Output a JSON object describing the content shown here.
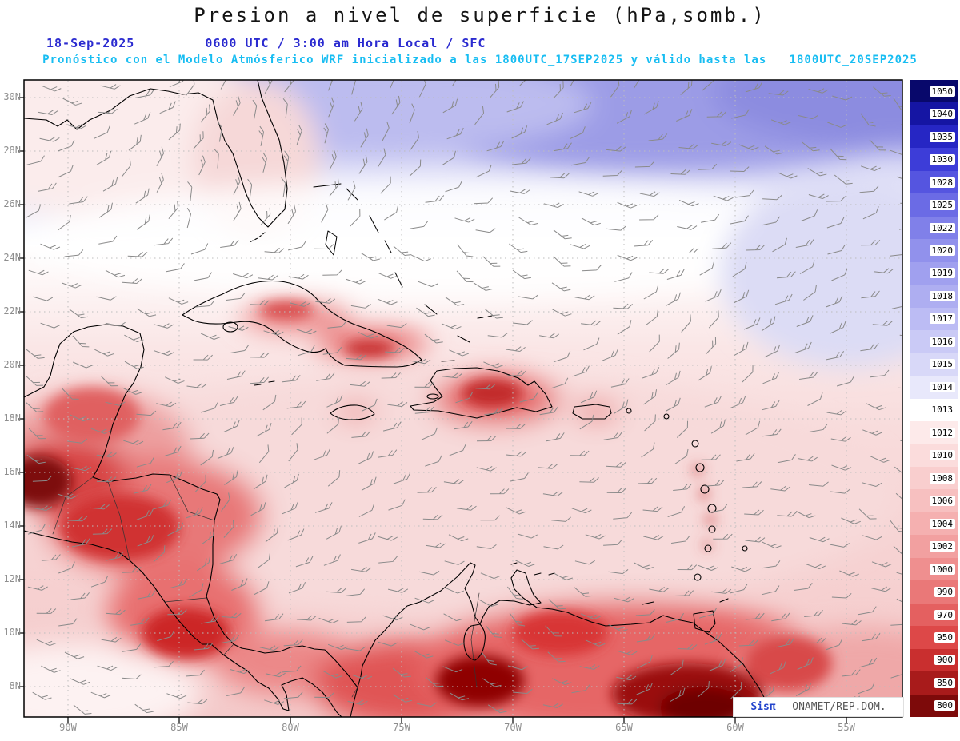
{
  "header": {
    "title": "Presion a nivel de superficie (hPa,somb.)",
    "date": "18-Sep-2025",
    "time_line": "0600 UTC / 3:00 am Hora Local / SFC",
    "forecast_line": "Pronóstico con el Modelo Atmósferico WRF inicializado a las 1800UTC_17SEP2025 y válido hasta las   1800UTC_20SEP2025"
  },
  "map": {
    "lat_labels": [
      "30N",
      "28N",
      "26N",
      "24N",
      "22N",
      "20N",
      "18N",
      "16N",
      "14N",
      "12N",
      "10N",
      "8N"
    ],
    "lon_labels": [
      "90W",
      "85W",
      "80W",
      "75W",
      "70W",
      "65W",
      "60W",
      "55W"
    ]
  },
  "colorbar": {
    "units": "hPa",
    "values": [
      "1050",
      "1040",
      "1035",
      "1030",
      "1028",
      "1025",
      "1022",
      "1020",
      "1019",
      "1018",
      "1017",
      "1016",
      "1015",
      "1014",
      "1013",
      "1012",
      "1010",
      "1008",
      "1006",
      "1004",
      "1002",
      "1000",
      "990",
      "970",
      "950",
      "900",
      "850",
      "800"
    ],
    "colors": [
      "#08086b",
      "#1515a3",
      "#2626c4",
      "#3d3dd8",
      "#5555e0",
      "#6b6be5",
      "#8080e9",
      "#9191ec",
      "#a0a0ef",
      "#aeaef1",
      "#bcbcf4",
      "#cacaf6",
      "#d8d8f8",
      "#e8e8fb",
      "#ffffff",
      "#fdeaea",
      "#fbdcdc",
      "#f9cece",
      "#f7c0c0",
      "#f5b0b0",
      "#f2a0a0",
      "#ef8f8f",
      "#ea7878",
      "#e46060",
      "#dd4848",
      "#c92f2f",
      "#a81b1b",
      "#7d0a0a"
    ]
  },
  "watermark": {
    "brand": "Sisπ",
    "rest": "— ONAMET/REP.DOM."
  },
  "chart_data": {
    "type": "heatmap",
    "title": "Presion a nivel de superficie (hPa,somb.)",
    "units": "hPa",
    "levels": [
      800,
      850,
      900,
      950,
      970,
      990,
      1000,
      1002,
      1004,
      1006,
      1008,
      1010,
      1012,
      1013,
      1014,
      1015,
      1016,
      1017,
      1018,
      1019,
      1020,
      1022,
      1025,
      1028,
      1030,
      1035,
      1040,
      1050
    ],
    "lat_axis": {
      "ticks": [
        "30N",
        "28N",
        "26N",
        "24N",
        "22N",
        "20N",
        "18N",
        "16N",
        "14N",
        "12N",
        "10N",
        "8N"
      ]
    },
    "lon_axis": {
      "ticks": [
        "90W",
        "85W",
        "80W",
        "75W",
        "70W",
        "65W",
        "60W",
        "55W"
      ]
    },
    "overlays": [
      "wind-barbs",
      "coastlines",
      "dotted-graticule"
    ],
    "legend_position": "right",
    "notes": "High pressure (blue) over NW Atlantic at top; low pressure (red) over Central America, Greater Antilles and northern South America."
  }
}
